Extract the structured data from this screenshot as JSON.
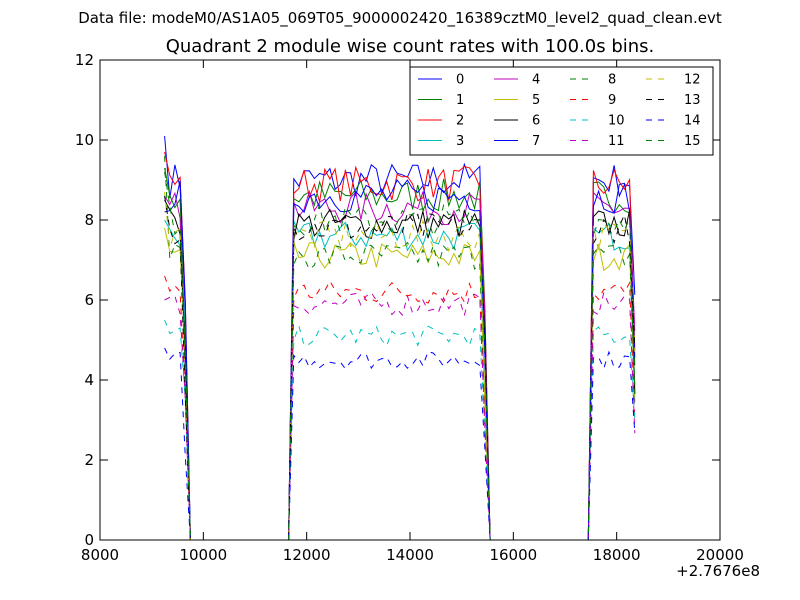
{
  "chart_data": {
    "type": "line",
    "suptitle": "Data file: modeM0/AS1A05_069T05_9000002420_16389cztM0_level2_quad_clean.evt",
    "title": "Quadrant 2 module wise count rates with 100.0s bins.",
    "xlabel": "",
    "ylabel": "",
    "x_offset_label": "+2.7676e8",
    "xlim": [
      8000,
      20000
    ],
    "ylim": [
      0,
      12
    ],
    "xticks": [
      8000,
      10000,
      12000,
      14000,
      16000,
      18000,
      20000
    ],
    "yticks": [
      0,
      2,
      4,
      6,
      8,
      10,
      12
    ],
    "grid": false,
    "legend": {
      "placement": "top-right",
      "columns": 4
    },
    "segments": [
      {
        "start": 9250,
        "end": 9650
      },
      {
        "start": 11750,
        "end": 15450
      },
      {
        "start": 17550,
        "end": 18350
      }
    ],
    "series": [
      {
        "name": "0",
        "color": "#0000ff",
        "style": "solid",
        "level": 9.0,
        "first": 10.1
      },
      {
        "name": "1",
        "color": "#008000",
        "style": "solid",
        "level": 8.6,
        "first": 9.3
      },
      {
        "name": "2",
        "color": "#ff0000",
        "style": "solid",
        "level": 8.9,
        "first": 9.7
      },
      {
        "name": "3",
        "color": "#00bfbf",
        "style": "solid",
        "level": 7.6,
        "first": 8.0
      },
      {
        "name": "4",
        "color": "#bf00bf",
        "style": "solid",
        "level": 8.3,
        "first": 8.6
      },
      {
        "name": "5",
        "color": "#bfbf00",
        "style": "solid",
        "level": 7.1,
        "first": 7.8
      },
      {
        "name": "6",
        "color": "#000000",
        "style": "solid",
        "level": 7.9,
        "first": 8.5
      },
      {
        "name": "7",
        "color": "#0000ff",
        "style": "solid",
        "level": 8.6,
        "first": 8.2
      },
      {
        "name": "8",
        "color": "#008000",
        "style": "dashed",
        "level": 7.1,
        "first": 9.6
      },
      {
        "name": "9",
        "color": "#ff0000",
        "style": "dashed",
        "level": 6.2,
        "first": 6.6
      },
      {
        "name": "10",
        "color": "#00bfbf",
        "style": "dashed",
        "level": 5.1,
        "first": 5.5
      },
      {
        "name": "11",
        "color": "#bf00bf",
        "style": "dashed",
        "level": 5.9,
        "first": 6.0
      },
      {
        "name": "12",
        "color": "#bfbf00",
        "style": "dashed",
        "level": 7.6,
        "first": 8.7
      },
      {
        "name": "13",
        "color": "#000000",
        "style": "dashed",
        "level": 7.8,
        "first": 8.6
      },
      {
        "name": "14",
        "color": "#0000ff",
        "style": "dashed",
        "level": 4.5,
        "first": 4.8
      },
      {
        "name": "15",
        "color": "#008000",
        "style": "dashed",
        "level": 8.0,
        "first": 9.2
      }
    ]
  }
}
